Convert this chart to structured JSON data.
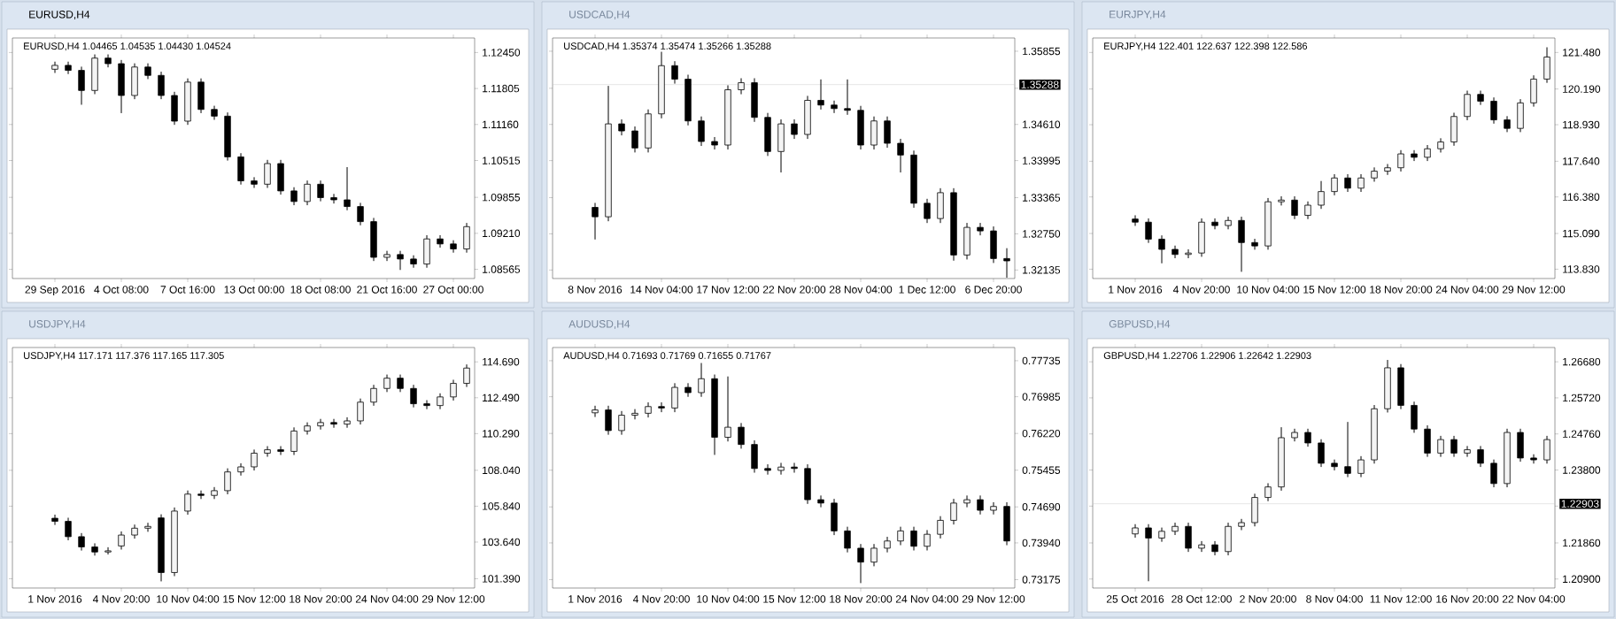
{
  "chart_data": [
    {
      "type": "candlestick",
      "title": "EURUSD,H4",
      "subtitle": "EURUSD,H4 1.04465 1.04535 1.04430 1.04524",
      "categories": [
        "29 Sep 2016",
        null,
        null,
        null,
        null,
        "4 Oct 08:00",
        null,
        null,
        null,
        null,
        "7 Oct 16:00",
        null,
        null,
        null,
        null,
        "13 Oct 00:00",
        null,
        null,
        null,
        null,
        "18 Oct 08:00",
        null,
        null,
        null,
        null,
        "21 Oct 16:00",
        null,
        null,
        null,
        null,
        "27 Oct 00:00",
        null
      ],
      "ohlc": [
        [
          1.1215,
          1.1228,
          1.1209,
          1.1222
        ],
        [
          1.1222,
          1.1228,
          1.1207,
          1.1213
        ],
        [
          1.1213,
          1.1219,
          1.1152,
          1.1177
        ],
        [
          1.1177,
          1.1241,
          1.1171,
          1.1235
        ],
        [
          1.1235,
          1.1241,
          1.1219,
          1.1225
        ],
        [
          1.1225,
          1.1231,
          1.1137,
          1.1168
        ],
        [
          1.1168,
          1.1225,
          1.1162,
          1.1219
        ],
        [
          1.1219,
          1.1225,
          1.1198,
          1.1204
        ],
        [
          1.1204,
          1.121,
          1.1162,
          1.1168
        ],
        [
          1.1168,
          1.1174,
          1.1116,
          1.1122
        ],
        [
          1.1122,
          1.1198,
          1.1116,
          1.1192
        ],
        [
          1.1192,
          1.1198,
          1.1137,
          1.1143
        ],
        [
          1.1143,
          1.1149,
          1.1125,
          1.1131
        ],
        [
          1.1131,
          1.1137,
          1.1052,
          1.1058
        ],
        [
          1.1058,
          1.1064,
          1.1009,
          1.1015
        ],
        [
          1.1015,
          1.1021,
          1.1003,
          1.1009
        ],
        [
          1.1009,
          1.1052,
          1.1003,
          1.1046
        ],
        [
          1.1046,
          1.1052,
          1.0991,
          1.0997
        ],
        [
          1.0997,
          1.1003,
          1.0972,
          1.0978
        ],
        [
          1.0978,
          1.1015,
          1.0972,
          1.1009
        ],
        [
          1.1009,
          1.1015,
          1.0979,
          1.0985
        ],
        [
          1.0985,
          1.0991,
          1.0975,
          1.0981
        ],
        [
          1.0981,
          1.1039,
          1.0963,
          1.0969
        ],
        [
          1.0969,
          1.0975,
          1.0936,
          1.0942
        ],
        [
          1.0942,
          1.0948,
          1.0872,
          1.0878
        ],
        [
          1.0878,
          1.0889,
          1.0872,
          1.0883
        ],
        [
          1.0883,
          1.0889,
          1.0856,
          1.0875
        ],
        [
          1.0875,
          1.0881,
          1.086,
          1.0866
        ],
        [
          1.0866,
          1.0917,
          1.086,
          1.0911
        ],
        [
          1.0911,
          1.0917,
          1.0896,
          1.0902
        ],
        [
          1.0902,
          1.0908,
          1.0887,
          1.0893
        ],
        [
          1.0893,
          1.0939,
          1.0887,
          1.0933
        ]
      ],
      "ylim": [
        1.084,
        1.1271
      ],
      "yticks": [
        {
          "value": 1.08565,
          "label": "1.08565"
        },
        {
          "value": 1.0921,
          "label": "1.09210"
        },
        {
          "value": 1.09855,
          "label": "1.09855"
        },
        {
          "value": 1.10515,
          "label": "1.10515"
        },
        {
          "value": 1.1116,
          "label": "1.11160"
        },
        {
          "value": 1.11805,
          "label": "1.11805"
        },
        {
          "value": 1.1245,
          "label": "1.12450"
        }
      ]
    },
    {
      "type": "candlestick",
      "title": "USDCAD,H4",
      "subtitle": "USDCAD,H4 1.35374 1.35474 1.35266 1.35288",
      "categories": [
        "8 Nov 2016",
        null,
        null,
        null,
        null,
        "14 Nov 04:00",
        null,
        null,
        null,
        null,
        "17 Nov 12:00",
        null,
        null,
        null,
        null,
        "22 Nov 20:00",
        null,
        null,
        null,
        null,
        "28 Nov 04:00",
        null,
        null,
        null,
        null,
        "1 Dec 12:00",
        null,
        null,
        null,
        null,
        "6 Dec 20:00",
        null
      ],
      "ohlc": [
        [
          1.332,
          1.3327,
          1.3266,
          1.3304
        ],
        [
          1.3304,
          1.3526,
          1.3297,
          1.3462
        ],
        [
          1.3462,
          1.3469,
          1.3443,
          1.345
        ],
        [
          1.345,
          1.3457,
          1.3414,
          1.3421
        ],
        [
          1.3421,
          1.3486,
          1.3414,
          1.3479
        ],
        [
          1.3479,
          1.3584,
          1.3472,
          1.3561
        ],
        [
          1.3561,
          1.3568,
          1.3531,
          1.3538
        ],
        [
          1.3538,
          1.3545,
          1.346,
          1.3467
        ],
        [
          1.3467,
          1.3474,
          1.3425,
          1.3432
        ],
        [
          1.3432,
          1.3439,
          1.3419,
          1.3426
        ],
        [
          1.3426,
          1.3527,
          1.3419,
          1.352
        ],
        [
          1.352,
          1.3539,
          1.3513,
          1.3532
        ],
        [
          1.3532,
          1.3539,
          1.3466,
          1.3473
        ],
        [
          1.3473,
          1.348,
          1.3408,
          1.3415
        ],
        [
          1.3415,
          1.3469,
          1.338,
          1.3462
        ],
        [
          1.3462,
          1.3469,
          1.3437,
          1.3444
        ],
        [
          1.3444,
          1.3509,
          1.3437,
          1.3502
        ],
        [
          1.3502,
          1.3537,
          1.3487,
          1.3494
        ],
        [
          1.3494,
          1.3501,
          1.3481,
          1.3488
        ],
        [
          1.3488,
          1.3537,
          1.3478,
          1.3485
        ],
        [
          1.3485,
          1.3492,
          1.3419,
          1.3426
        ],
        [
          1.3426,
          1.3474,
          1.3419,
          1.3467
        ],
        [
          1.3467,
          1.3474,
          1.3422,
          1.3429
        ],
        [
          1.3429,
          1.3436,
          1.338,
          1.3409
        ],
        [
          1.3409,
          1.3416,
          1.332,
          1.3327
        ],
        [
          1.3327,
          1.3334,
          1.3294,
          1.3301
        ],
        [
          1.3301,
          1.3352,
          1.3294,
          1.3345
        ],
        [
          1.3345,
          1.3352,
          1.323,
          1.3239
        ],
        [
          1.3239,
          1.3293,
          1.3232,
          1.3286
        ],
        [
          1.3286,
          1.3293,
          1.3273,
          1.328
        ],
        [
          1.328,
          1.3287,
          1.3226,
          1.3233
        ],
        [
          1.3233,
          1.325,
          1.3201,
          1.3229
        ]
      ],
      "ylim": [
        1.3199,
        1.3608
      ],
      "yticks": [
        {
          "value": 1.32135,
          "label": "1.32135"
        },
        {
          "value": 1.3275,
          "label": "1.32750"
        },
        {
          "value": 1.33365,
          "label": "1.33365"
        },
        {
          "value": 1.33995,
          "label": "1.33995"
        },
        {
          "value": 1.3461,
          "label": "1.34610"
        },
        {
          "value": 1.35225,
          "label": null
        },
        {
          "value": 1.35855,
          "label": "1.35855"
        }
      ],
      "ref_lines": [
        {
          "axis": "y",
          "value": 1.35288,
          "label": "1.35288",
          "color": "#c0c0c0"
        }
      ]
    },
    {
      "type": "candlestick",
      "title": "EURJPY,H4",
      "subtitle": "EURJPY,H4 122.401 122.637 122.398 122.586",
      "categories": [
        "1 Nov 2016",
        null,
        null,
        null,
        null,
        "4 Nov 20:00",
        null,
        null,
        null,
        null,
        "10 Nov 04:00",
        null,
        null,
        null,
        null,
        "15 Nov 12:00",
        null,
        null,
        null,
        null,
        "18 Nov 20:00",
        null,
        null,
        null,
        null,
        "24 Nov 04:00",
        null,
        null,
        null,
        null,
        "29 Nov 12:00",
        null
      ],
      "ohlc": [
        [
          115.6,
          115.72,
          115.37,
          115.49
        ],
        [
          115.49,
          115.61,
          114.77,
          114.89
        ],
        [
          114.89,
          115.01,
          114.05,
          114.53
        ],
        [
          114.53,
          114.65,
          114.23,
          114.35
        ],
        [
          114.35,
          114.52,
          114.23,
          114.4
        ],
        [
          114.4,
          115.61,
          114.28,
          115.49
        ],
        [
          115.49,
          115.61,
          115.25,
          115.37
        ],
        [
          115.37,
          115.67,
          115.25,
          115.55
        ],
        [
          115.55,
          115.67,
          113.75,
          114.77
        ],
        [
          114.77,
          114.89,
          114.53,
          114.65
        ],
        [
          114.65,
          116.33,
          114.53,
          116.21
        ],
        [
          116.21,
          116.39,
          116.09,
          116.27
        ],
        [
          116.27,
          116.39,
          115.61,
          115.73
        ],
        [
          115.73,
          116.21,
          115.61,
          116.09
        ],
        [
          116.09,
          116.93,
          115.97,
          116.57
        ],
        [
          116.57,
          117.17,
          116.45,
          117.05
        ],
        [
          117.05,
          117.17,
          116.57,
          116.69
        ],
        [
          116.69,
          117.17,
          116.57,
          117.05
        ],
        [
          117.05,
          117.41,
          116.93,
          117.29
        ],
        [
          117.29,
          117.53,
          117.17,
          117.41
        ],
        [
          117.41,
          118.02,
          117.29,
          117.9
        ],
        [
          117.9,
          118.02,
          117.66,
          117.78
        ],
        [
          117.78,
          118.2,
          117.66,
          118.08
        ],
        [
          118.08,
          118.44,
          117.96,
          118.32
        ],
        [
          118.32,
          119.34,
          118.2,
          119.22
        ],
        [
          119.22,
          120.12,
          119.1,
          120.0
        ],
        [
          120.0,
          120.12,
          119.64,
          119.76
        ],
        [
          119.76,
          119.88,
          118.98,
          119.1
        ],
        [
          119.1,
          119.22,
          118.68,
          118.8
        ],
        [
          118.8,
          119.82,
          118.68,
          119.7
        ],
        [
          119.7,
          120.66,
          119.58,
          120.54
        ],
        [
          120.54,
          121.65,
          120.42,
          121.32
        ]
      ],
      "ylim": [
        113.5,
        121.99
      ],
      "yticks": [
        {
          "value": 113.83,
          "label": "113.830"
        },
        {
          "value": 115.09,
          "label": "115.090"
        },
        {
          "value": 116.38,
          "label": "116.380"
        },
        {
          "value": 117.64,
          "label": "117.640"
        },
        {
          "value": 118.93,
          "label": "118.930"
        },
        {
          "value": 120.19,
          "label": "120.190"
        },
        {
          "value": 121.48,
          "label": "121.480"
        }
      ]
    },
    {
      "type": "candlestick",
      "title": "USDJPY,H4",
      "subtitle": "USDJPY,H4 117.171 117.376 117.165 117.305",
      "categories": [
        "1 Nov 2016",
        null,
        null,
        null,
        null,
        "4 Nov 20:00",
        null,
        null,
        null,
        null,
        "10 Nov 04:00",
        null,
        null,
        null,
        null,
        "15 Nov 12:00",
        null,
        null,
        null,
        null,
        "18 Nov 20:00",
        null,
        null,
        null,
        null,
        "24 Nov 04:00",
        null,
        null,
        null,
        null,
        "29 Nov 12:00",
        null
      ],
      "ohlc": [
        [
          105.1,
          105.3,
          104.71,
          104.91
        ],
        [
          104.91,
          105.11,
          103.77,
          103.97
        ],
        [
          103.97,
          104.17,
          103.14,
          103.34
        ],
        [
          103.34,
          103.54,
          102.83,
          103.03
        ],
        [
          103.03,
          103.3,
          102.9,
          103.1
        ],
        [
          103.4,
          104.27,
          103.2,
          104.07
        ],
        [
          104.07,
          104.69,
          103.87,
          104.49
        ],
        [
          104.49,
          104.8,
          104.29,
          104.6
        ],
        [
          105.12,
          105.32,
          101.25,
          101.77
        ],
        [
          101.77,
          105.74,
          101.57,
          105.54
        ],
        [
          105.54,
          106.78,
          105.34,
          106.58
        ],
        [
          106.58,
          106.78,
          106.3,
          106.5
        ],
        [
          106.5,
          106.99,
          106.3,
          106.79
        ],
        [
          106.79,
          108.14,
          106.59,
          107.94
        ],
        [
          107.94,
          108.45,
          107.74,
          108.25
        ],
        [
          108.25,
          109.29,
          108.05,
          109.09
        ],
        [
          109.09,
          109.5,
          108.89,
          109.3
        ],
        [
          109.3,
          109.5,
          109.0,
          109.2
        ],
        [
          109.2,
          110.65,
          109.0,
          110.45
        ],
        [
          110.45,
          110.96,
          110.25,
          110.76
        ],
        [
          110.76,
          111.17,
          110.56,
          110.97
        ],
        [
          110.97,
          111.17,
          110.67,
          110.87
        ],
        [
          110.87,
          111.27,
          110.67,
          111.07
        ],
        [
          111.07,
          112.42,
          110.87,
          112.22
        ],
        [
          112.22,
          113.26,
          112.02,
          113.06
        ],
        [
          113.06,
          113.89,
          112.86,
          113.69
        ],
        [
          113.69,
          113.89,
          112.86,
          113.06
        ],
        [
          113.06,
          113.26,
          111.92,
          112.12
        ],
        [
          112.12,
          112.32,
          111.81,
          112.01
        ],
        [
          112.01,
          112.74,
          111.81,
          112.54
        ],
        [
          112.54,
          113.57,
          112.34,
          113.37
        ],
        [
          113.37,
          114.51,
          113.17,
          114.31
        ]
      ],
      "ylim": [
        100.82,
        115.57
      ],
      "yticks": [
        {
          "value": 101.39,
          "label": "101.390"
        },
        {
          "value": 103.64,
          "label": "103.640"
        },
        {
          "value": 105.84,
          "label": "105.840"
        },
        {
          "value": 108.04,
          "label": "108.040"
        },
        {
          "value": 110.29,
          "label": "110.290"
        },
        {
          "value": 112.49,
          "label": "112.490"
        },
        {
          "value": 114.69,
          "label": "114.690"
        }
      ]
    },
    {
      "type": "candlestick",
      "title": "AUDUSD,H4",
      "subtitle": "AUDUSD,H4 0.71693 0.71769 0.71655 0.71767",
      "categories": [
        "1 Nov 2016",
        null,
        null,
        null,
        null,
        "4 Nov 20:00",
        null,
        null,
        null,
        null,
        "10 Nov 04:00",
        null,
        null,
        null,
        null,
        "15 Nov 12:00",
        null,
        null,
        null,
        null,
        "18 Nov 20:00",
        null,
        null,
        null,
        null,
        "24 Nov 04:00",
        null,
        null,
        null,
        null,
        "29 Nov 12:00",
        null
      ],
      "ohlc": [
        [
          0.7665,
          0.7679,
          0.7657,
          0.7671
        ],
        [
          0.7671,
          0.7679,
          0.762,
          0.7628
        ],
        [
          0.7628,
          0.7668,
          0.762,
          0.766
        ],
        [
          0.766,
          0.7672,
          0.7652,
          0.7664
        ],
        [
          0.7664,
          0.7686,
          0.7656,
          0.7678
        ],
        [
          0.7678,
          0.7686,
          0.7667,
          0.7675
        ],
        [
          0.7675,
          0.7726,
          0.7667,
          0.7718
        ],
        [
          0.7718,
          0.7726,
          0.7699,
          0.7707
        ],
        [
          0.7707,
          0.7768,
          0.7699,
          0.7736
        ],
        [
          0.7736,
          0.7744,
          0.7578,
          0.7614
        ],
        [
          0.7614,
          0.774,
          0.7606,
          0.7635
        ],
        [
          0.7635,
          0.7643,
          0.7591,
          0.7599
        ],
        [
          0.7599,
          0.7607,
          0.7541,
          0.7549
        ],
        [
          0.7549,
          0.7557,
          0.7537,
          0.7545
        ],
        [
          0.7545,
          0.756,
          0.7537,
          0.7552
        ],
        [
          0.7552,
          0.756,
          0.7541,
          0.7549
        ],
        [
          0.7549,
          0.7557,
          0.7476,
          0.7484
        ],
        [
          0.7484,
          0.7492,
          0.7469,
          0.7477
        ],
        [
          0.7477,
          0.7485,
          0.7411,
          0.7419
        ],
        [
          0.7419,
          0.7427,
          0.7375,
          0.7383
        ],
        [
          0.7383,
          0.7391,
          0.7311,
          0.7354
        ],
        [
          0.7354,
          0.7391,
          0.7346,
          0.7383
        ],
        [
          0.7383,
          0.7406,
          0.7375,
          0.7398
        ],
        [
          0.7398,
          0.7427,
          0.739,
          0.7419
        ],
        [
          0.7419,
          0.7427,
          0.7379,
          0.7387
        ],
        [
          0.7387,
          0.742,
          0.7379,
          0.7412
        ],
        [
          0.7412,
          0.7449,
          0.7404,
          0.7441
        ],
        [
          0.7441,
          0.7485,
          0.7433,
          0.7477
        ],
        [
          0.7477,
          0.7492,
          0.7469,
          0.7484
        ],
        [
          0.7484,
          0.7492,
          0.7454,
          0.7462
        ],
        [
          0.7462,
          0.7478,
          0.7454,
          0.747
        ],
        [
          0.747,
          0.7478,
          0.739,
          0.7398
        ]
      ],
      "ylim": [
        0.73,
        0.7801
      ],
      "yticks": [
        {
          "value": 0.73175,
          "label": "0.73175"
        },
        {
          "value": 0.7394,
          "label": "0.73940"
        },
        {
          "value": 0.7469,
          "label": "0.74690"
        },
        {
          "value": 0.75455,
          "label": "0.75455"
        },
        {
          "value": 0.7622,
          "label": "0.76220"
        },
        {
          "value": 0.76985,
          "label": "0.76985"
        },
        {
          "value": 0.77735,
          "label": "0.77735"
        }
      ]
    },
    {
      "type": "candlestick",
      "title": "GBPUSD,H4",
      "subtitle": "GBPUSD,H4 1.22706 1.22906 1.22642 1.22903",
      "categories": [
        "25 Oct 2016",
        null,
        null,
        null,
        null,
        "28 Oct 12:00",
        null,
        null,
        null,
        null,
        "2 Nov 20:00",
        null,
        null,
        null,
        null,
        "8 Nov 04:00",
        null,
        null,
        null,
        null,
        "11 Nov 12:00",
        null,
        null,
        null,
        null,
        "16 Nov 20:00",
        null,
        null,
        null,
        null,
        "22 Nov 04:00",
        null
      ],
      "ohlc": [
        [
          1.221,
          1.2235,
          1.2201,
          1.2226
        ],
        [
          1.2226,
          1.2235,
          1.2085,
          1.2199
        ],
        [
          1.2199,
          1.2226,
          1.219,
          1.2217
        ],
        [
          1.2217,
          1.2239,
          1.2208,
          1.223
        ],
        [
          1.223,
          1.2239,
          1.2163,
          1.2172
        ],
        [
          1.2172,
          1.219,
          1.2163,
          1.2181
        ],
        [
          1.2181,
          1.219,
          1.2154,
          1.2163
        ],
        [
          1.2163,
          1.2239,
          1.2154,
          1.223
        ],
        [
          1.223,
          1.2249,
          1.2221,
          1.224
        ],
        [
          1.224,
          1.2316,
          1.2231,
          1.2307
        ],
        [
          1.2307,
          1.2344,
          1.2298,
          1.2335
        ],
        [
          1.2335,
          1.2493,
          1.2326,
          1.2466
        ],
        [
          1.2466,
          1.2489,
          1.2457,
          1.248
        ],
        [
          1.248,
          1.2489,
          1.2443,
          1.2452
        ],
        [
          1.2452,
          1.2461,
          1.2389,
          1.2398
        ],
        [
          1.2398,
          1.2407,
          1.238,
          1.2389
        ],
        [
          1.2389,
          1.2507,
          1.2362,
          1.2371
        ],
        [
          1.2371,
          1.2416,
          1.2362,
          1.2407
        ],
        [
          1.2407,
          1.2552,
          1.2398,
          1.2543
        ],
        [
          1.2543,
          1.2672,
          1.2534,
          1.2652
        ],
        [
          1.2652,
          1.2661,
          1.2543,
          1.2552
        ],
        [
          1.2552,
          1.2561,
          1.248,
          1.2489
        ],
        [
          1.2489,
          1.2498,
          1.2416,
          1.2425
        ],
        [
          1.2425,
          1.247,
          1.2416,
          1.2461
        ],
        [
          1.2461,
          1.247,
          1.2416,
          1.2425
        ],
        [
          1.2425,
          1.2443,
          1.2416,
          1.2434
        ],
        [
          1.2434,
          1.2443,
          1.2389,
          1.2398
        ],
        [
          1.2398,
          1.2407,
          1.2335,
          1.2344
        ],
        [
          1.2344,
          1.2489,
          1.2335,
          1.248
        ],
        [
          1.248,
          1.2489,
          1.2403,
          1.2412
        ],
        [
          1.2412,
          1.2421,
          1.2398,
          1.2407
        ],
        [
          1.2407,
          1.247,
          1.2398,
          1.2461
        ]
      ],
      "ylim": [
        1.2066,
        1.2706
      ],
      "yticks": [
        {
          "value": 1.209,
          "label": "1.20900"
        },
        {
          "value": 1.2186,
          "label": "1.21860"
        },
        {
          "value": 1.2284,
          "label": null
        },
        {
          "value": 1.238,
          "label": "1.23800"
        },
        {
          "value": 1.2476,
          "label": "1.24760"
        },
        {
          "value": 1.2572,
          "label": "1.25720"
        },
        {
          "value": 1.2668,
          "label": "1.26680"
        }
      ],
      "ref_lines": [
        {
          "axis": "y",
          "value": 1.22903,
          "label": "1.22903",
          "color": "#c0c0c0"
        }
      ]
    }
  ]
}
